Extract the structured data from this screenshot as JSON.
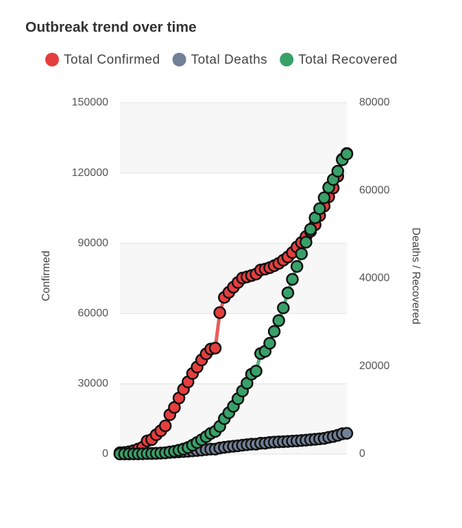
{
  "chart_data": {
    "type": "line",
    "title": "Outbreak trend over time",
    "ylabel": "Confirmed",
    "y2label": "Deaths / Recovered",
    "ylim": [
      0,
      150000
    ],
    "yticks": [
      0,
      30000,
      60000,
      90000,
      120000,
      150000
    ],
    "y2lim": [
      0,
      80000
    ],
    "y2ticks": [
      0,
      20000,
      40000,
      60000,
      80000
    ],
    "grid": true,
    "legend": "top",
    "series": [
      {
        "name": "Total Confirmed",
        "color": "#e53e3e",
        "values": [
          555,
          654,
          941,
          1434,
          2118,
          2927,
          5578,
          6166,
          8234,
          9927,
          12038,
          16787,
          19881,
          23892,
          27635,
          30794,
          34391,
          37120,
          40150,
          42762,
          44802,
          45221,
          60368,
          66885,
          69030,
          71224,
          73258,
          75136,
          75639,
          76197,
          76823,
          78579,
          78965,
          79568,
          80413,
          81395,
          82754,
          84120,
          86011,
          88369,
          90306,
          92840,
          95120,
          97886,
          101801,
          105847,
          109821,
          113590,
          118620,
          125875,
          128343
        ]
      },
      {
        "name": "Total Deaths",
        "color": "#718096",
        "axis": "y2",
        "values": [
          17,
          18,
          26,
          42,
          56,
          82,
          131,
          133,
          171,
          213,
          259,
          362,
          426,
          492,
          564,
          634,
          719,
          806,
          906,
          1013,
          1113,
          1118,
          1371,
          1523,
          1666,
          1770,
          1868,
          2007,
          2122,
          2247,
          2251,
          2458,
          2469,
          2629,
          2708,
          2770,
          2814,
          2872,
          2941,
          2996,
          3085,
          3160,
          3254,
          3348,
          3460,
          3558,
          3802,
          3988,
          4262,
          4615,
          4720
        ]
      },
      {
        "name": "Total Recovered",
        "color": "#38a169",
        "axis": "y2",
        "values": [
          28,
          30,
          36,
          39,
          52,
          61,
          107,
          126,
          143,
          222,
          284,
          472,
          623,
          852,
          1124,
          1487,
          2011,
          2616,
          3244,
          3946,
          4683,
          5150,
          6295,
          8058,
          9395,
          10865,
          12583,
          14352,
          16121,
          18177,
          18890,
          22886,
          23394,
          25227,
          27905,
          30384,
          33277,
          36711,
          39782,
          42716,
          45602,
          48228,
          51170,
          53796,
          55865,
          58358,
          60694,
          62494,
          64404,
          67003,
          68324
        ]
      }
    ]
  }
}
